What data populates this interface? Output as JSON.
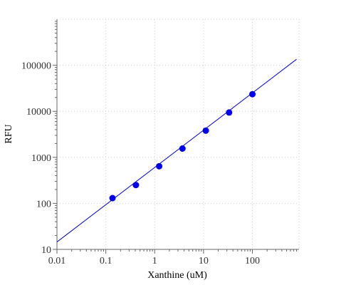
{
  "chart_data": {
    "type": "scatter",
    "xlabel": "Xanthine (uM)",
    "ylabel": "RFU",
    "x_scale": "log",
    "y_scale": "log",
    "xlim": [
      0.01,
      900
    ],
    "ylim": [
      10,
      1000000
    ],
    "grid": true,
    "x_ticks": [
      0.01,
      0.1,
      1,
      10,
      100
    ],
    "x_tick_labels": [
      "0.01",
      "0.1",
      "1",
      "10",
      "100"
    ],
    "y_ticks": [
      10,
      100,
      1000,
      10000,
      100000
    ],
    "y_tick_labels": [
      "10",
      "100",
      "1000",
      "10000",
      "100000"
    ],
    "series": [
      {
        "x": [
          0.137,
          0.412,
          1.235,
          3.704,
          11.11,
          33.33,
          100
        ],
        "y": [
          130,
          250,
          640,
          1550,
          3800,
          9400,
          23500
        ]
      }
    ],
    "fit_line": {
      "x": [
        0.01,
        800
      ],
      "y": [
        14.5,
        135000
      ]
    },
    "colors": {
      "points": "#0000ee",
      "line": "#0000cc",
      "axis": "#666666",
      "grid": "#cccccc"
    }
  }
}
